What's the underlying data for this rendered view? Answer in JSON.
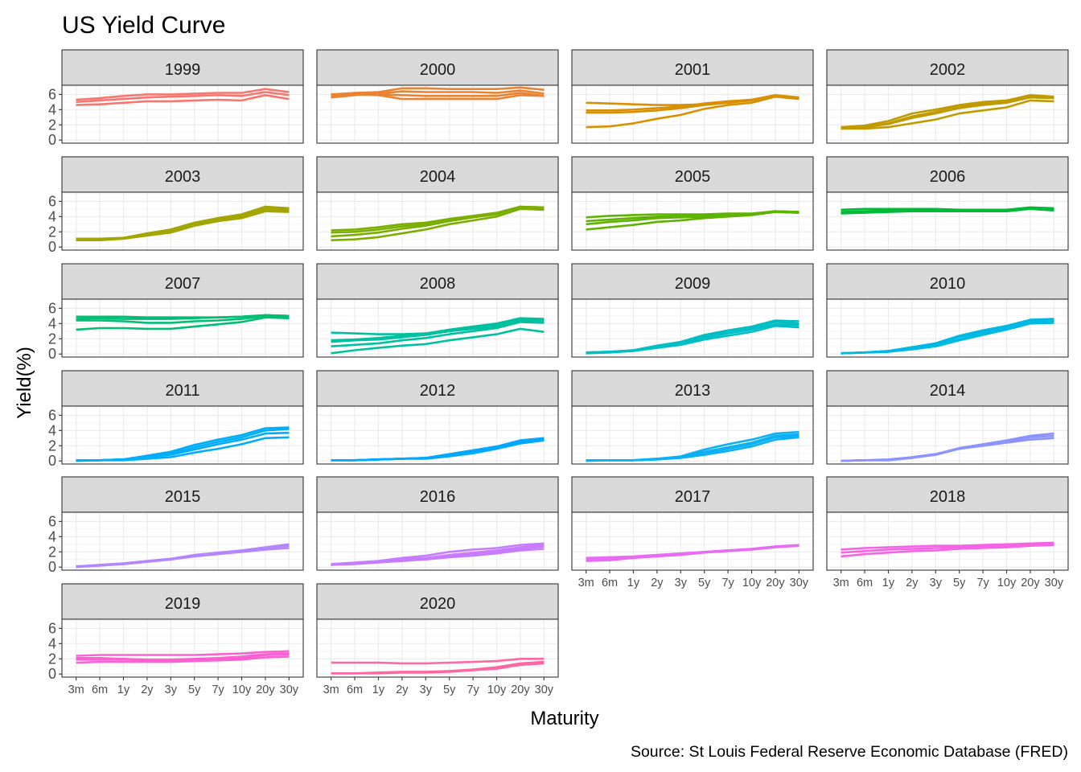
{
  "chart_data": {
    "type": "line",
    "title": "US Yield Curve",
    "xlabel": "Maturity",
    "ylabel": "Yield(%)",
    "caption": "Source: St Louis Federal Reserve Economic Database (FRED)",
    "categories": [
      "3m",
      "6m",
      "1y",
      "2y",
      "3y",
      "5y",
      "7y",
      "10y",
      "20y",
      "30y"
    ],
    "yticks": [
      0,
      2,
      4,
      6
    ],
    "ylim": [
      -0.4,
      7.2
    ],
    "grid": true,
    "legend": "none",
    "facets": [
      {
        "year": "1999",
        "color": "#F8766D",
        "curves": [
          [
            4.6,
            4.7,
            4.9,
            5.1,
            5.1,
            5.2,
            5.3,
            5.2,
            5.9,
            5.4
          ],
          [
            5.0,
            5.2,
            5.4,
            5.6,
            5.7,
            5.8,
            5.9,
            5.8,
            6.3,
            5.9
          ],
          [
            5.3,
            5.5,
            5.8,
            6.0,
            6.0,
            6.1,
            6.2,
            6.2,
            6.7,
            6.3
          ]
        ]
      },
      {
        "year": "2000",
        "color": "#EA8331",
        "curves": [
          [
            5.6,
            5.9,
            6.1,
            6.4,
            6.3,
            6.3,
            6.3,
            6.2,
            6.5,
            6.1
          ],
          [
            5.8,
            6.0,
            6.0,
            5.9,
            5.8,
            5.8,
            5.8,
            5.8,
            6.2,
            5.8
          ],
          [
            6.0,
            6.2,
            6.3,
            6.8,
            6.8,
            6.7,
            6.7,
            6.7,
            6.9,
            6.6
          ],
          [
            5.9,
            6.0,
            5.9,
            5.4,
            5.4,
            5.4,
            5.4,
            5.4,
            5.9,
            5.8
          ]
        ]
      },
      {
        "year": "2001",
        "color": "#D89000",
        "curves": [
          [
            4.9,
            4.8,
            4.7,
            4.6,
            4.6,
            4.7,
            5.0,
            5.3,
            5.8,
            5.6
          ],
          [
            3.6,
            3.6,
            3.7,
            3.9,
            4.2,
            4.6,
            4.9,
            5.2,
            5.7,
            5.5
          ],
          [
            1.7,
            1.8,
            2.2,
            2.8,
            3.3,
            4.1,
            4.6,
            4.9,
            5.7,
            5.4
          ],
          [
            3.9,
            3.9,
            4.0,
            4.2,
            4.4,
            4.8,
            5.1,
            5.3,
            5.9,
            5.6
          ]
        ]
      },
      {
        "year": "2002",
        "color": "#C09B00",
        "curves": [
          [
            1.7,
            1.9,
            2.5,
            3.5,
            4.0,
            4.6,
            5.0,
            5.2,
            5.9,
            5.7
          ],
          [
            1.6,
            1.7,
            2.1,
            2.9,
            3.5,
            4.2,
            4.6,
            4.9,
            5.6,
            5.5
          ],
          [
            1.5,
            1.5,
            1.7,
            2.2,
            2.7,
            3.5,
            3.9,
            4.3,
            5.2,
            5.1
          ],
          [
            1.7,
            1.8,
            2.2,
            3.1,
            3.7,
            4.4,
            4.8,
            5.1,
            5.8,
            5.6
          ]
        ]
      },
      {
        "year": "2003",
        "color": "#A3A500",
        "curves": [
          [
            1.0,
            1.0,
            1.2,
            1.8,
            2.3,
            3.2,
            3.8,
            4.3,
            5.3,
            5.1
          ],
          [
            0.9,
            0.9,
            1.1,
            1.5,
            1.9,
            2.8,
            3.4,
            3.9,
            4.9,
            4.8
          ],
          [
            1.0,
            1.0,
            1.1,
            1.6,
            2.0,
            2.9,
            3.4,
            3.8,
            4.7,
            4.6
          ],
          [
            1.1,
            1.1,
            1.2,
            1.7,
            2.2,
            3.1,
            3.6,
            4.1,
            5.1,
            5.0
          ]
        ]
      },
      {
        "year": "2004",
        "color": "#7CAE00",
        "curves": [
          [
            2.2,
            2.3,
            2.6,
            3.0,
            3.2,
            3.7,
            4.1,
            4.5,
            5.3,
            5.2
          ],
          [
            0.9,
            1.0,
            1.3,
            1.8,
            2.3,
            3.0,
            3.5,
            4.0,
            5.0,
            4.9
          ],
          [
            1.4,
            1.6,
            1.9,
            2.4,
            2.8,
            3.4,
            3.9,
            4.3,
            5.2,
            5.1
          ],
          [
            1.9,
            2.0,
            2.3,
            2.7,
            3.0,
            3.6,
            4.0,
            4.4,
            5.3,
            5.2
          ]
        ]
      },
      {
        "year": "2005",
        "color": "#5EB300",
        "curves": [
          [
            2.3,
            2.6,
            2.9,
            3.3,
            3.5,
            3.8,
            4.0,
            4.2,
            4.6,
            4.5
          ],
          [
            3.0,
            3.3,
            3.5,
            3.8,
            3.9,
            4.0,
            4.2,
            4.3,
            4.6,
            4.5
          ],
          [
            3.9,
            4.1,
            4.2,
            4.3,
            4.3,
            4.3,
            4.4,
            4.4,
            4.7,
            4.6
          ],
          [
            3.4,
            3.6,
            3.8,
            4.0,
            4.1,
            4.2,
            4.3,
            4.3,
            4.7,
            4.6
          ]
        ]
      },
      {
        "year": "2006",
        "color": "#00BA38",
        "curves": [
          [
            4.4,
            4.5,
            4.6,
            4.7,
            4.7,
            4.7,
            4.7,
            4.7,
            5.0,
            4.8
          ],
          [
            4.9,
            5.0,
            5.0,
            5.0,
            5.0,
            4.9,
            4.9,
            4.9,
            5.2,
            5.1
          ],
          [
            4.6,
            4.7,
            4.8,
            4.8,
            4.8,
            4.8,
            4.8,
            4.8,
            5.1,
            4.9
          ]
        ]
      },
      {
        "year": "2007",
        "color": "#00BF74",
        "curves": [
          [
            4.9,
            4.9,
            4.9,
            4.8,
            4.8,
            4.8,
            4.8,
            4.9,
            5.1,
            5.0
          ],
          [
            4.4,
            4.4,
            4.3,
            4.1,
            4.1,
            4.3,
            4.4,
            4.6,
            5.0,
            4.9
          ],
          [
            3.2,
            3.4,
            3.4,
            3.3,
            3.3,
            3.6,
            3.9,
            4.2,
            4.8,
            4.7
          ],
          [
            4.6,
            4.7,
            4.6,
            4.6,
            4.6,
            4.7,
            4.8,
            4.9,
            5.1,
            5.0
          ]
        ]
      },
      {
        "year": "2008",
        "color": "#00C19F",
        "curves": [
          [
            2.8,
            2.7,
            2.6,
            2.6,
            2.7,
            3.0,
            3.3,
            3.6,
            4.4,
            4.3
          ],
          [
            1.6,
            1.8,
            1.9,
            2.2,
            2.5,
            3.0,
            3.4,
            3.8,
            4.6,
            4.5
          ],
          [
            0.1,
            0.5,
            0.8,
            1.1,
            1.3,
            1.8,
            2.2,
            2.6,
            3.3,
            2.9
          ],
          [
            1.8,
            1.9,
            2.1,
            2.4,
            2.7,
            3.2,
            3.6,
            4.0,
            4.7,
            4.6
          ],
          [
            1.0,
            1.2,
            1.4,
            1.8,
            2.1,
            2.6,
            3.0,
            3.4,
            4.2,
            4.1
          ]
        ]
      },
      {
        "year": "2009",
        "color": "#00BFC4",
        "curves": [
          [
            0.2,
            0.3,
            0.5,
            1.0,
            1.5,
            2.3,
            2.9,
            3.4,
            4.2,
            4.0
          ],
          [
            0.1,
            0.2,
            0.4,
            0.8,
            1.2,
            1.9,
            2.4,
            2.9,
            3.7,
            3.5
          ],
          [
            0.2,
            0.3,
            0.5,
            1.1,
            1.6,
            2.5,
            3.1,
            3.6,
            4.4,
            4.3
          ],
          [
            0.1,
            0.3,
            0.4,
            0.9,
            1.4,
            2.1,
            2.7,
            3.2,
            3.9,
            3.8
          ]
        ]
      },
      {
        "year": "2010",
        "color": "#00B9E3",
        "curves": [
          [
            0.1,
            0.2,
            0.4,
            0.9,
            1.4,
            2.4,
            3.1,
            3.7,
            4.5,
            4.6
          ],
          [
            0.1,
            0.2,
            0.3,
            0.6,
            1.0,
            1.8,
            2.5,
            3.2,
            4.0,
            4.1
          ],
          [
            0.1,
            0.2,
            0.4,
            0.8,
            1.3,
            2.2,
            2.9,
            3.5,
            4.4,
            4.5
          ],
          [
            0.1,
            0.2,
            0.3,
            0.7,
            1.1,
            1.9,
            2.7,
            3.3,
            4.2,
            4.3
          ]
        ]
      },
      {
        "year": "2011",
        "color": "#00ADFA",
        "curves": [
          [
            0.1,
            0.1,
            0.2,
            0.7,
            1.2,
            2.1,
            2.8,
            3.4,
            4.3,
            4.4
          ],
          [
            0.0,
            0.1,
            0.1,
            0.3,
            0.5,
            1.1,
            1.6,
            2.2,
            3.0,
            3.1
          ],
          [
            0.1,
            0.1,
            0.2,
            0.5,
            0.8,
            1.5,
            2.2,
            2.8,
            3.6,
            3.7
          ],
          [
            0.1,
            0.1,
            0.2,
            0.6,
            1.0,
            1.8,
            2.5,
            3.1,
            4.0,
            4.2
          ]
        ]
      },
      {
        "year": "2012",
        "color": "#00A9FF",
        "curves": [
          [
            0.1,
            0.1,
            0.2,
            0.3,
            0.4,
            0.9,
            1.4,
            1.9,
            2.7,
            3.0
          ],
          [
            0.1,
            0.1,
            0.2,
            0.3,
            0.4,
            0.7,
            1.2,
            1.7,
            2.5,
            2.8
          ],
          [
            0.1,
            0.1,
            0.2,
            0.3,
            0.3,
            0.6,
            1.0,
            1.6,
            2.3,
            2.7
          ],
          [
            0.1,
            0.1,
            0.2,
            0.3,
            0.4,
            0.8,
            1.3,
            1.8,
            2.6,
            3.0
          ]
        ]
      },
      {
        "year": "2013",
        "color": "#0CB0F5",
        "curves": [
          [
            0.1,
            0.1,
            0.1,
            0.3,
            0.6,
            1.5,
            2.2,
            2.8,
            3.6,
            3.8
          ],
          [
            0.0,
            0.1,
            0.1,
            0.2,
            0.4,
            0.8,
            1.3,
            1.9,
            2.8,
            3.1
          ],
          [
            0.1,
            0.1,
            0.1,
            0.3,
            0.5,
            1.2,
            1.8,
            2.4,
            3.3,
            3.5
          ],
          [
            0.1,
            0.1,
            0.1,
            0.2,
            0.5,
            1.0,
            1.6,
            2.2,
            3.1,
            3.3
          ]
        ]
      },
      {
        "year": "2014",
        "color": "#8B93FF",
        "curves": [
          [
            0.0,
            0.1,
            0.1,
            0.5,
            0.9,
            1.7,
            2.2,
            2.7,
            3.3,
            3.6
          ],
          [
            0.0,
            0.1,
            0.2,
            0.5,
            0.9,
            1.6,
            2.0,
            2.4,
            2.8,
            3.0
          ],
          [
            0.0,
            0.1,
            0.1,
            0.4,
            0.8,
            1.6,
            2.1,
            2.5,
            3.1,
            3.3
          ]
        ]
      },
      {
        "year": "2015",
        "color": "#B385FF",
        "curves": [
          [
            0.1,
            0.3,
            0.5,
            0.8,
            1.1,
            1.6,
            1.9,
            2.2,
            2.6,
            3.0
          ],
          [
            0.0,
            0.2,
            0.4,
            0.7,
            1.0,
            1.5,
            1.8,
            2.1,
            2.5,
            2.8
          ],
          [
            0.1,
            0.2,
            0.4,
            0.7,
            1.0,
            1.4,
            1.7,
            2.0,
            2.3,
            2.5
          ]
        ]
      },
      {
        "year": "2016",
        "color": "#C77CFF",
        "curves": [
          [
            0.3,
            0.5,
            0.7,
            1.0,
            1.2,
            1.6,
            1.9,
            2.2,
            2.6,
            2.9
          ],
          [
            0.3,
            0.5,
            0.6,
            0.8,
            1.0,
            1.3,
            1.5,
            1.8,
            2.2,
            2.4
          ],
          [
            0.4,
            0.6,
            0.8,
            1.2,
            1.5,
            2.0,
            2.3,
            2.5,
            2.9,
            3.1
          ],
          [
            0.3,
            0.4,
            0.6,
            0.9,
            1.1,
            1.4,
            1.7,
            2.0,
            2.4,
            2.7
          ]
        ]
      },
      {
        "year": "2017",
        "color": "#E76BF3",
        "curves": [
          [
            0.8,
            0.9,
            1.2,
            1.4,
            1.6,
            1.9,
            2.1,
            2.3,
            2.6,
            2.8
          ],
          [
            1.2,
            1.3,
            1.4,
            1.6,
            1.8,
            2.0,
            2.2,
            2.4,
            2.7,
            2.9
          ],
          [
            1.0,
            1.1,
            1.3,
            1.5,
            1.7,
            2.0,
            2.2,
            2.4,
            2.7,
            2.8
          ]
        ]
      },
      {
        "year": "2018",
        "color": "#F564E3",
        "curves": [
          [
            1.4,
            1.7,
            1.9,
            2.1,
            2.2,
            2.4,
            2.5,
            2.6,
            2.8,
            2.9
          ],
          [
            2.3,
            2.5,
            2.6,
            2.7,
            2.8,
            2.8,
            2.9,
            3.0,
            3.1,
            3.2
          ],
          [
            1.9,
            2.1,
            2.3,
            2.4,
            2.5,
            2.6,
            2.7,
            2.8,
            2.9,
            3.0
          ]
        ]
      },
      {
        "year": "2019",
        "color": "#FD61D1",
        "curves": [
          [
            1.5,
            1.6,
            1.6,
            1.6,
            1.6,
            1.7,
            1.8,
            1.9,
            2.2,
            2.3
          ],
          [
            2.4,
            2.5,
            2.5,
            2.5,
            2.5,
            2.5,
            2.6,
            2.7,
            2.9,
            3.0
          ],
          [
            2.1,
            2.1,
            2.0,
            1.9,
            1.9,
            2.0,
            2.1,
            2.3,
            2.6,
            2.7
          ],
          [
            1.9,
            1.9,
            1.9,
            1.8,
            1.8,
            1.9,
            2.0,
            2.1,
            2.5,
            2.6
          ]
        ]
      },
      {
        "year": "2020",
        "color": "#FF67A4",
        "curves": [
          [
            0.1,
            0.1,
            0.1,
            0.2,
            0.2,
            0.3,
            0.5,
            0.7,
            1.2,
            1.4
          ],
          [
            1.5,
            1.5,
            1.5,
            1.4,
            1.4,
            1.5,
            1.6,
            1.7,
            2.0,
            2.0
          ],
          [
            0.1,
            0.1,
            0.2,
            0.3,
            0.3,
            0.4,
            0.6,
            0.9,
            1.4,
            1.6
          ]
        ]
      }
    ]
  }
}
